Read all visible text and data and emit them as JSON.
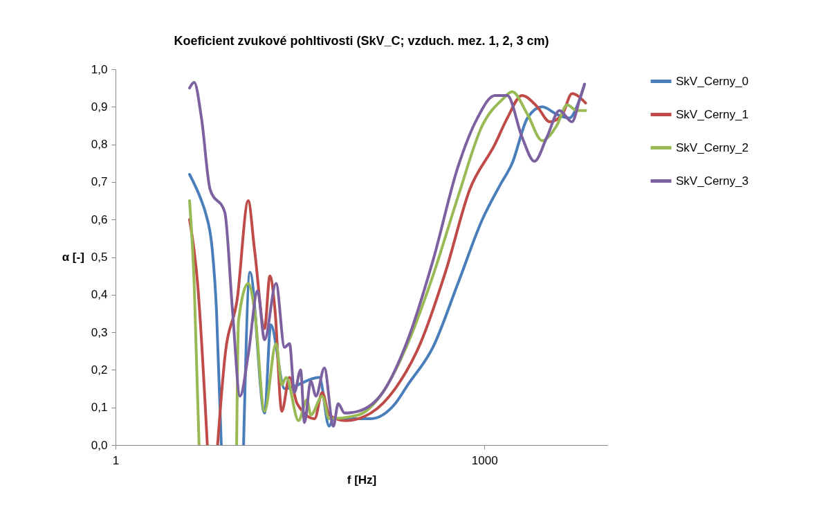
{
  "chart_data": {
    "type": "line",
    "title": "Koeficient zvukové pohltivosti (SkV_C; vzduch. mez. 1, 2, 3 cm)",
    "xlabel": "f [Hz]",
    "ylabel": "α [-]",
    "log": "x",
    "xlim": [
      1,
      10000
    ],
    "xticks": [
      1,
      1000
    ],
    "ylim": [
      0,
      1
    ],
    "yticks": [
      {
        "value": 0,
        "label": "0,0"
      },
      {
        "value": 0.1,
        "label": "0,1"
      },
      {
        "value": 0.2,
        "label": "0,2"
      },
      {
        "value": 0.3,
        "label": "0,3"
      },
      {
        "value": 0.4,
        "label": "0,4"
      },
      {
        "value": 0.5,
        "label": "0,5"
      },
      {
        "value": 0.6,
        "label": "0,6"
      },
      {
        "value": 0.7,
        "label": "0,7"
      },
      {
        "value": 0.8,
        "label": "0,8"
      },
      {
        "value": 0.9,
        "label": "0,9"
      },
      {
        "value": 1,
        "label": "1,0"
      }
    ],
    "grid": false,
    "legend": "right",
    "line_style": "solid",
    "marker": "none",
    "series": [
      {
        "name": "SkV_Cerny_0",
        "color": "#4a7ebb",
        "x": [
          4.0,
          5.0,
          5.37,
          6.12,
          6.62,
          7.25,
          9.0,
          11.0,
          12.4,
          16.3,
          18.3,
          23.7,
          45.5,
          54.6,
          59.1,
          119,
          188,
          238,
          381,
          609,
          961,
          1331,
          1682,
          2239,
          2946,
          3871,
          4897,
          5957,
          6520
        ],
        "values": [
          0.72,
          0.65,
          0.62,
          0.52,
          0.36,
          0,
          null,
          0,
          0.46,
          0.085,
          0.32,
          0.15,
          0.18,
          0.05,
          0.07,
          0.07,
          0.11,
          0.16,
          0.26,
          0.43,
          0.6,
          0.69,
          0.75,
          0.87,
          0.9,
          0.88,
          0.87,
          0.92,
          0.96
        ]
      },
      {
        "name": "SkV_Cerny_1",
        "color": "#be4b48",
        "x": [
          4.0,
          4.65,
          5.58,
          6.0,
          6.76,
          7.73,
          9.78,
          12.0,
          13.5,
          16.3,
          18.0,
          19.8,
          22.5,
          26.0,
          30.0,
          41.6,
          48.0,
          54.6,
          74.6,
          119,
          188,
          301,
          482,
          760,
          1216,
          1535,
          2018,
          2691,
          3398,
          4299,
          5154,
          6650
        ],
        "values": [
          0.6,
          0.43,
          0,
          null,
          0,
          0.23,
          0.39,
          0.65,
          0.52,
          0.31,
          0.45,
          0.36,
          0.09,
          0.18,
          0.11,
          0.07,
          0.14,
          0.08,
          0.065,
          0.085,
          0.15,
          0.27,
          0.46,
          0.68,
          0.8,
          0.87,
          0.93,
          0.9,
          0.86,
          0.88,
          0.935,
          0.91
        ]
      },
      {
        "name": "SkV_Cerny_2",
        "color": "#98b954",
        "x": [
          4.0,
          4.36,
          4.78,
          7.0,
          9.66,
          10.0,
          12.0,
          13.5,
          16.3,
          20.2,
          22.5,
          24.4,
          30.8,
          36.0,
          38.7,
          48.0,
          54.6,
          94.4,
          149,
          238,
          381,
          609,
          961,
          1403,
          1682,
          2239,
          2946,
          3871,
          4709,
          5651,
          6650
        ],
        "values": [
          0.65,
          0.43,
          0,
          null,
          0,
          0.33,
          0.43,
          0.36,
          0.09,
          0.27,
          0.16,
          0.18,
          0.065,
          0.12,
          0.08,
          0.13,
          0.07,
          0.08,
          0.14,
          0.27,
          0.45,
          0.66,
          0.85,
          0.92,
          0.94,
          0.88,
          0.81,
          0.85,
          0.905,
          0.89,
          0.89
        ]
      },
      {
        "name": "SkV_Cerny_3",
        "color": "#7d60a0",
        "x": [
          4.0,
          4.36,
          5.0,
          5.88,
          7.73,
          8.93,
          10.3,
          12.0,
          14.3,
          16.3,
          20.2,
          23.7,
          26.0,
          28.5,
          32.0,
          34.4,
          38.7,
          42.7,
          49.9,
          59.1,
          64.7,
          72.8,
          94.4,
          149,
          238,
          381,
          609,
          877,
          1216,
          1535,
          2018,
          2552,
          3228,
          4080,
          5154,
          5957,
          6520
        ],
        "values": [
          0.95,
          0.965,
          0.87,
          0.68,
          0.62,
          0.36,
          0.13,
          0.24,
          0.41,
          0.28,
          0.43,
          0.26,
          0.27,
          0.14,
          0.2,
          0.06,
          0.17,
          0.13,
          0.205,
          0.05,
          0.11,
          0.085,
          0.09,
          0.14,
          0.28,
          0.49,
          0.74,
          0.87,
          0.93,
          0.93,
          0.82,
          0.755,
          0.82,
          0.89,
          0.86,
          0.92,
          0.96
        ]
      }
    ]
  }
}
